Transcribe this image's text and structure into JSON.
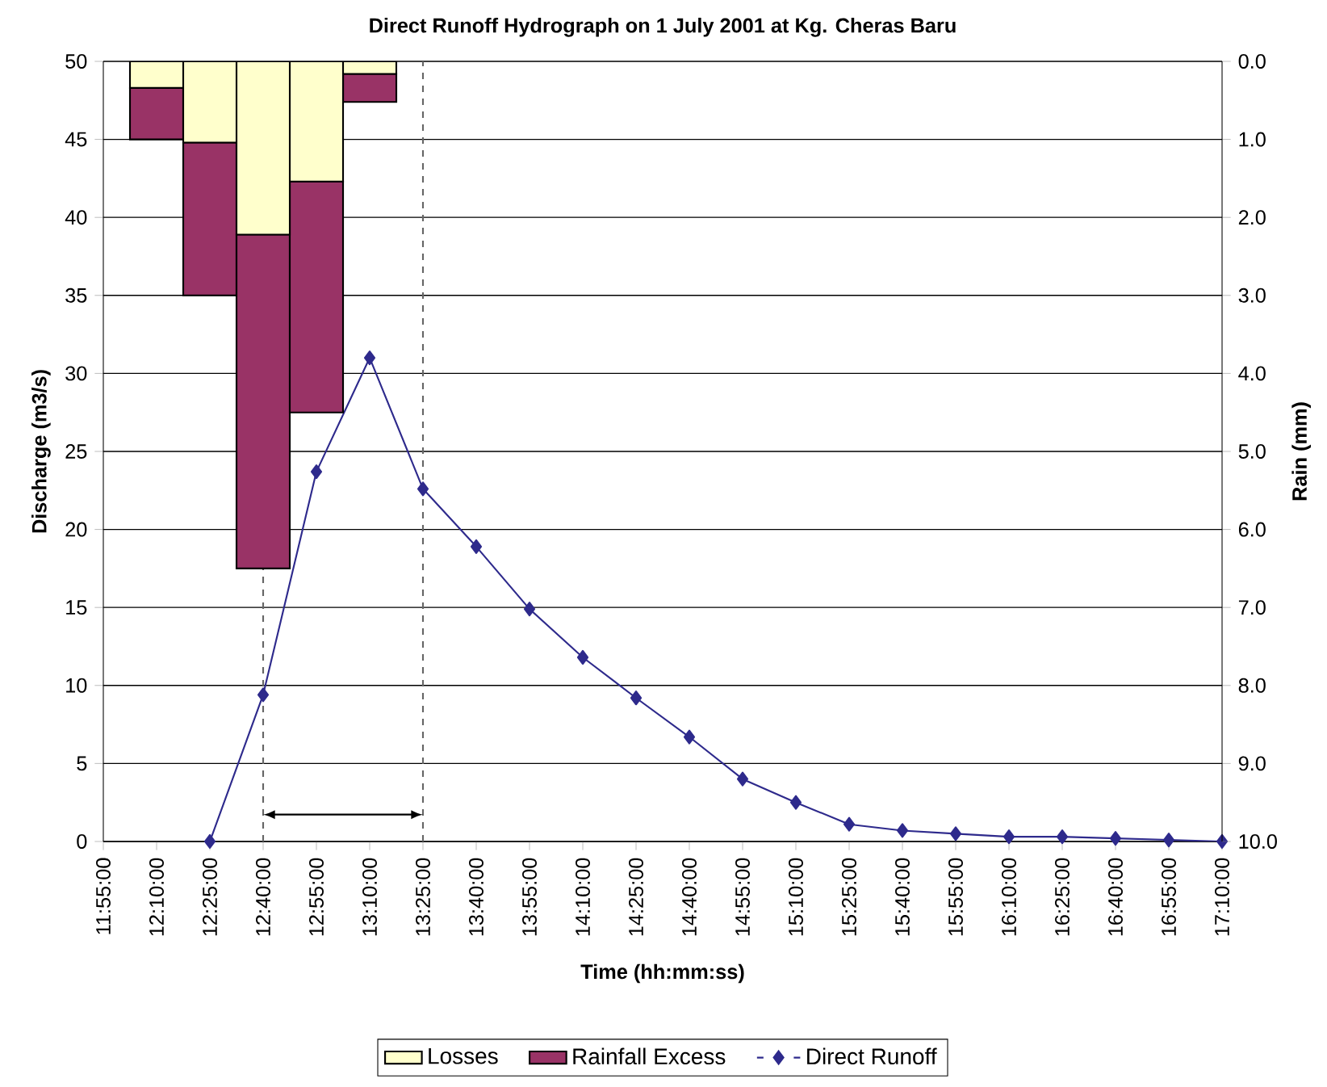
{
  "chart_data": {
    "type": "bar",
    "title": "Direct Runoff Hydrograph on 1 July 2001 at Kg. Cheras Baru",
    "xlabel": "Time (hh:mm:ss)",
    "ylabel": "Discharge (m3/s)",
    "y2label": "Rain (mm)",
    "categories": [
      "11:55:00",
      "12:10:00",
      "12:25:00",
      "12:40:00",
      "12:55:00",
      "13:10:00",
      "13:25:00",
      "13:40:00",
      "13:55:00",
      "14:10:00",
      "14:25:00",
      "14:40:00",
      "14:55:00",
      "15:10:00",
      "15:25:00",
      "15:40:00",
      "15:55:00",
      "16:10:00",
      "16:25:00",
      "16:40:00",
      "16:55:00",
      "17:10:00"
    ],
    "stacked": true,
    "series": [
      {
        "name": "Losses",
        "axis": "y2",
        "color": "#ffffcc",
        "values": [
          null,
          0.34,
          1.04,
          2.22,
          1.54,
          0.16,
          null,
          null,
          null,
          null,
          null,
          null,
          null,
          null,
          null,
          null,
          null,
          null,
          null,
          null,
          null,
          null
        ]
      },
      {
        "name": "Rainfall Excess",
        "axis": "y2",
        "color": "#993366",
        "values": [
          null,
          0.66,
          1.96,
          4.28,
          2.96,
          0.36,
          null,
          null,
          null,
          null,
          null,
          null,
          null,
          null,
          null,
          null,
          null,
          null,
          null,
          null,
          null,
          null
        ]
      },
      {
        "name": "Direct Runoff",
        "type": "line",
        "color": "#2e2a8c",
        "values": [
          null,
          null,
          0,
          9.4,
          23.7,
          31.0,
          22.6,
          18.9,
          14.9,
          11.8,
          9.2,
          6.7,
          4.0,
          2.5,
          1.1,
          0.7,
          0.5,
          0.3,
          0.3,
          0.2,
          0.1,
          0
        ]
      }
    ],
    "ylim": [
      0,
      50
    ],
    "yticks": [
      0,
      5,
      10,
      15,
      20,
      25,
      30,
      35,
      40,
      45,
      50
    ],
    "y2lim": [
      10,
      0
    ],
    "y2ticks": [
      {
        "value": 0,
        "label": "0.0"
      },
      {
        "value": 1,
        "label": "1.0"
      },
      {
        "value": 2,
        "label": "2.0"
      },
      {
        "value": 3,
        "label": "3.0"
      },
      {
        "value": 4,
        "label": "4.0"
      },
      {
        "value": 5,
        "label": "5.0"
      },
      {
        "value": 6,
        "label": "6.0"
      },
      {
        "value": 7,
        "label": "7.0"
      },
      {
        "value": 8,
        "label": "8.0"
      },
      {
        "value": 9,
        "label": "9.0"
      },
      {
        "value": 10,
        "label": "10.0"
      }
    ],
    "ref_lines": [
      {
        "axis": "x",
        "value": "12:40:00",
        "color": "#666666",
        "line_style": "dashed"
      },
      {
        "axis": "x",
        "value": "13:25:00",
        "color": "#666666",
        "line_style": "dashed"
      }
    ],
    "grid": "y",
    "legend": "bottom",
    "marker": "diamond"
  }
}
